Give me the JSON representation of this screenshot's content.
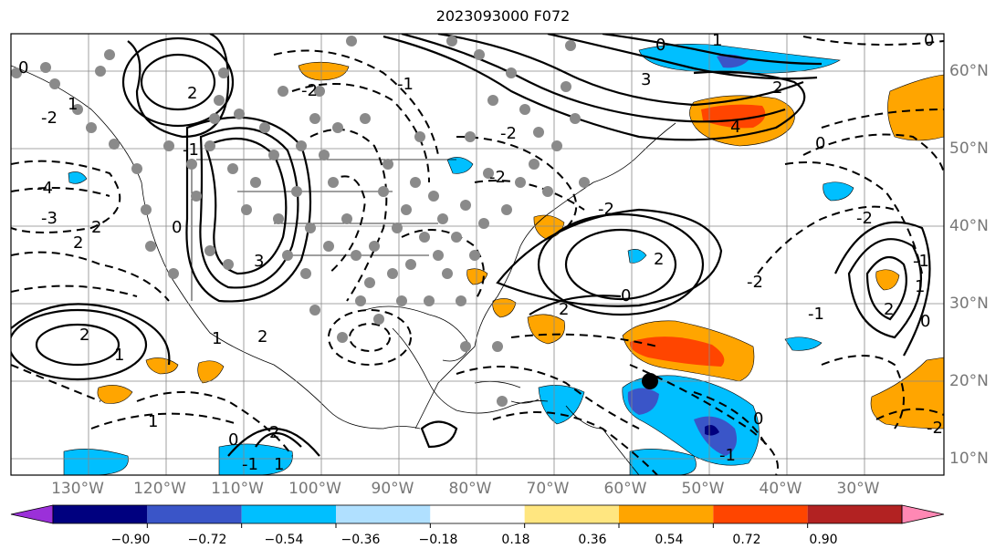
{
  "title": "2023093000 F072",
  "lon_labels": [
    "130°W",
    "120°W",
    "110°W",
    "100°W",
    "90°W",
    "80°W",
    "70°W",
    "60°W",
    "50°W",
    "40°W",
    "30°W"
  ],
  "lat_labels": [
    "60°N",
    "50°N",
    "40°N",
    "30°N",
    "20°N",
    "10°N"
  ],
  "colorbar": {
    "ticks": [
      "−0.90",
      "−0.72",
      "−0.54",
      "−0.36",
      "−0.18",
      "0.18",
      "0.36",
      "0.54",
      "0.72",
      "0.90"
    ],
    "colors": [
      "#9b30d9",
      "#00007f",
      "#3a55c8",
      "#00bfff",
      "#b0e0ff",
      "#ffffff",
      "#ffe680",
      "#ffa500",
      "#ff4500",
      "#b22222",
      "#ff88b4"
    ]
  },
  "contour_labels": [
    "0",
    "0",
    "1",
    "3",
    "2",
    "4",
    "-2",
    "2",
    "1",
    "-2",
    "-3",
    "-4",
    "2",
    "-1",
    "-2",
    "2",
    "3",
    "2",
    "1",
    "2",
    "0",
    "-2",
    "2",
    "2",
    "0",
    "1",
    "-1",
    "-1",
    "-2",
    "-2",
    "-1",
    "2",
    "1",
    "-2",
    "0",
    "-1",
    "1",
    "2",
    "0",
    "-1",
    "-2",
    "0",
    "0",
    "1",
    "0"
  ]
}
